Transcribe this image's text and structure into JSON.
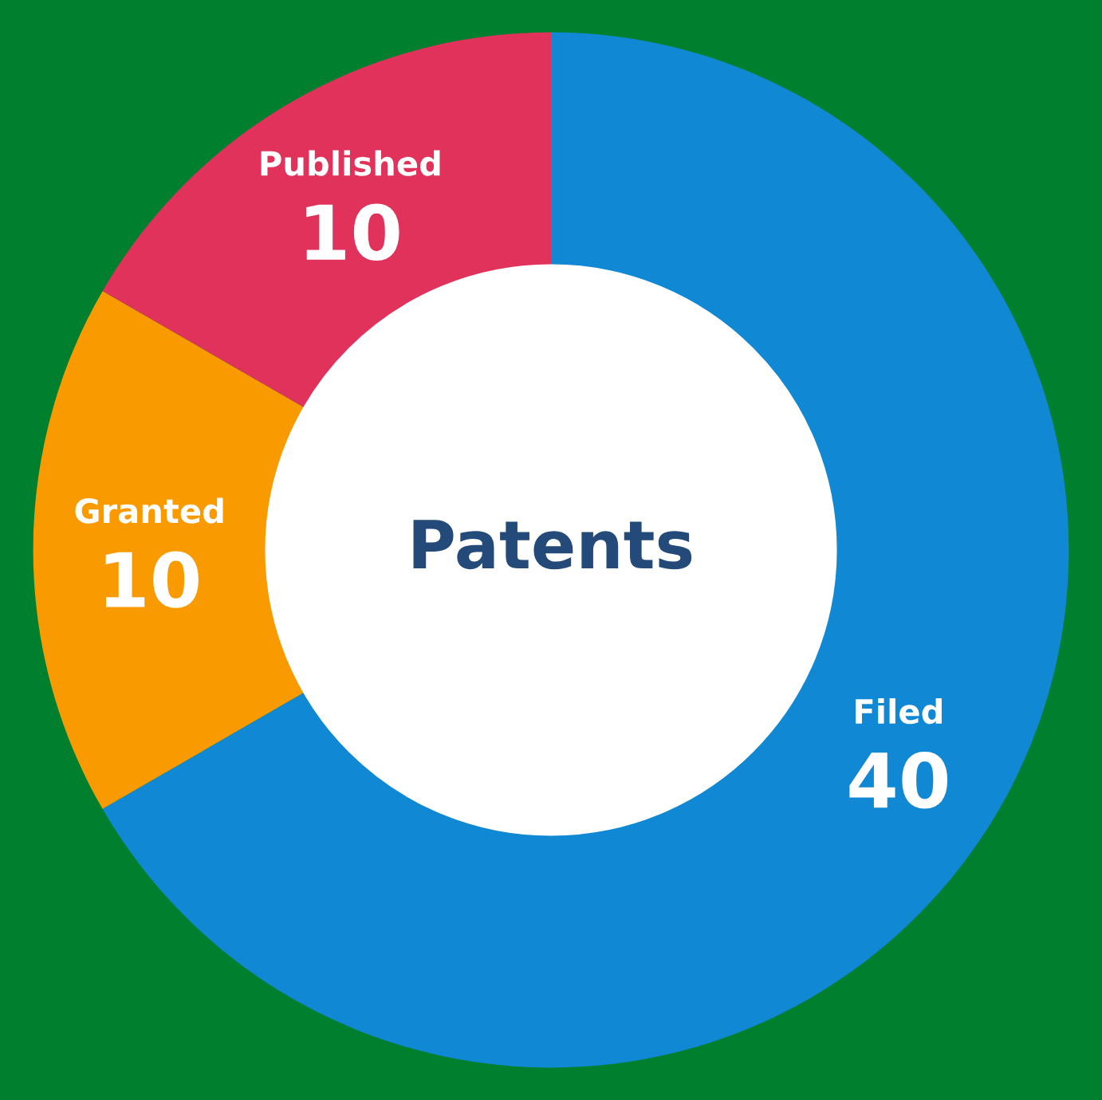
{
  "chart_data": {
    "type": "donut",
    "title": "Patents",
    "categories": [
      "Published",
      "Filed",
      "Granted"
    ],
    "values": [
      10,
      40,
      10
    ],
    "colors": [
      "#e0325a",
      "#1188d4",
      "#f99a00"
    ],
    "data_labels": true
  }
}
